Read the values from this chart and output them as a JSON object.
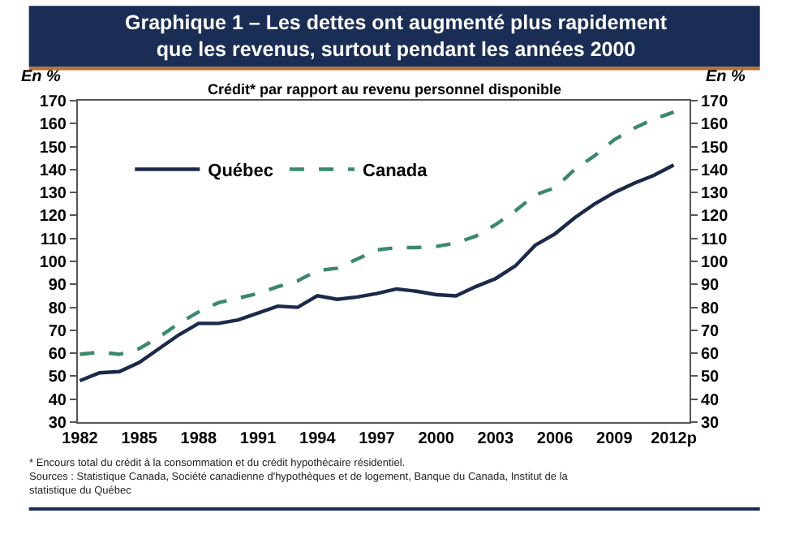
{
  "chart_data": {
    "type": "line",
    "title": "Graphique 1 – Les dettes ont augmenté plus rapidement\nque les revenus, surtout pendant les années 2000",
    "subtitle": "Crédit* par rapport au revenu personnel disponible",
    "ylabel": "En %",
    "y2label": "En %",
    "x": [
      1982,
      1983,
      1984,
      1985,
      1986,
      1987,
      1988,
      1989,
      1990,
      1991,
      1992,
      1993,
      1994,
      1995,
      1996,
      1997,
      1998,
      1999,
      2000,
      2001,
      2002,
      2003,
      2004,
      2005,
      2006,
      2007,
      2008,
      2009,
      2010,
      2011,
      2012
    ],
    "series": [
      {
        "name": "Québec",
        "color": "#1b2a4a",
        "line_style": "solid",
        "values": [
          48,
          51.5,
          52,
          56,
          62,
          68,
          73,
          73,
          74.5,
          77.5,
          80.5,
          80,
          85,
          83.5,
          84.5,
          86,
          88,
          87,
          85.5,
          85,
          89,
          92.5,
          98,
          107,
          112,
          119,
          125,
          130,
          134,
          137.5,
          142
        ]
      },
      {
        "name": "Canada",
        "color": "#3a8a6a",
        "line_style": "dashed",
        "values": [
          59.5,
          60.5,
          59.5,
          62,
          67,
          73,
          78,
          82,
          84,
          86,
          89,
          91.5,
          96,
          97,
          101,
          105,
          106,
          106,
          106.5,
          108,
          111,
          116,
          122,
          129,
          132,
          140,
          146,
          153,
          158,
          162,
          165
        ]
      }
    ],
    "xlim": [
      1981.9,
      2012.8
    ],
    "xticks": [
      1982,
      1985,
      1988,
      1991,
      1994,
      1997,
      2000,
      2003,
      2006,
      2009,
      {
        "value": 2012,
        "label": "2012p"
      }
    ],
    "ylim": [
      30,
      170
    ],
    "yticks": [
      30,
      40,
      50,
      60,
      70,
      80,
      90,
      100,
      110,
      120,
      130,
      140,
      150,
      160,
      170
    ],
    "y2lim": [
      30,
      170
    ],
    "y2ticks": [
      30,
      40,
      50,
      60,
      70,
      80,
      90,
      100,
      110,
      120,
      130,
      140,
      150,
      160,
      170
    ],
    "legend": "top left",
    "marker": "none",
    "annotations": [
      "* Encours total du crédit à la consommation et du crédit hypothécaire résidentiel.",
      "Sources : Statistique Canada, Société canadienne d'hypothèques et de logement, Banque du Canada, Institut de la statistique du Québec"
    ]
  }
}
